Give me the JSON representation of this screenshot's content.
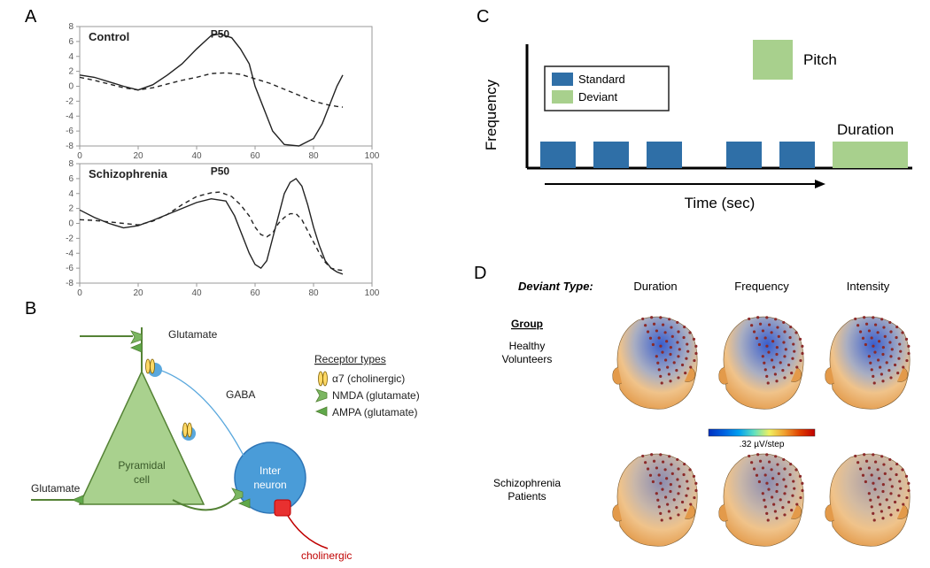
{
  "panels": {
    "A": "A",
    "B": "B",
    "C": "C",
    "D": "D"
  },
  "A": {
    "control": {
      "title": "Control",
      "p50": "P50",
      "xlim": [
        0,
        100
      ],
      "ylim": [
        -8,
        8
      ],
      "xticks": [
        0,
        20,
        40,
        60,
        80,
        100
      ],
      "yticks": [
        -8,
        -6,
        -4,
        -2,
        0,
        2,
        4,
        6,
        8
      ],
      "line_solid": [
        [
          0,
          1.5
        ],
        [
          5,
          1.2
        ],
        [
          10,
          0.6
        ],
        [
          15,
          0
        ],
        [
          20,
          -0.5
        ],
        [
          25,
          0.2
        ],
        [
          30,
          1.5
        ],
        [
          35,
          3
        ],
        [
          40,
          5
        ],
        [
          45,
          6.8
        ],
        [
          48,
          7
        ],
        [
          52,
          6.5
        ],
        [
          55,
          5
        ],
        [
          58,
          3
        ],
        [
          60,
          0
        ],
        [
          63,
          -3
        ],
        [
          66,
          -6
        ],
        [
          70,
          -7.8
        ],
        [
          75,
          -8
        ],
        [
          80,
          -7
        ],
        [
          83,
          -5
        ],
        [
          86,
          -2
        ],
        [
          88,
          0
        ],
        [
          90,
          1.5
        ]
      ],
      "line_dash": [
        [
          0,
          1.2
        ],
        [
          5,
          0.8
        ],
        [
          10,
          0.3
        ],
        [
          15,
          -0.2
        ],
        [
          20,
          -0.5
        ],
        [
          25,
          -0.2
        ],
        [
          30,
          0.3
        ],
        [
          35,
          0.8
        ],
        [
          40,
          1.2
        ],
        [
          45,
          1.7
        ],
        [
          50,
          1.8
        ],
        [
          55,
          1.6
        ],
        [
          60,
          1.0
        ],
        [
          65,
          0.4
        ],
        [
          70,
          -0.4
        ],
        [
          75,
          -1.2
        ],
        [
          80,
          -2
        ],
        [
          85,
          -2.5
        ],
        [
          88,
          -2.7
        ],
        [
          90,
          -2.8
        ]
      ],
      "solid_color": "#222222",
      "dash_color": "#222222",
      "line_width": 1.4
    },
    "schizo": {
      "title": "Schizophrenia",
      "p50": "P50",
      "xlim": [
        0,
        100
      ],
      "ylim": [
        -8,
        8
      ],
      "xticks": [
        0,
        20,
        40,
        60,
        80,
        100
      ],
      "yticks": [
        -8,
        -6,
        -4,
        -2,
        0,
        2,
        4,
        6,
        8
      ],
      "line_solid": [
        [
          0,
          1.8
        ],
        [
          5,
          0.8
        ],
        [
          10,
          0
        ],
        [
          15,
          -0.6
        ],
        [
          20,
          -0.3
        ],
        [
          25,
          0.4
        ],
        [
          30,
          1.2
        ],
        [
          35,
          2
        ],
        [
          40,
          2.8
        ],
        [
          45,
          3.3
        ],
        [
          50,
          3
        ],
        [
          53,
          1
        ],
        [
          56,
          -2
        ],
        [
          58,
          -4
        ],
        [
          60,
          -5.5
        ],
        [
          62,
          -6
        ],
        [
          64,
          -5
        ],
        [
          66,
          -2
        ],
        [
          68,
          1
        ],
        [
          70,
          4
        ],
        [
          72,
          5.5
        ],
        [
          74,
          6
        ],
        [
          76,
          5
        ],
        [
          78,
          2.5
        ],
        [
          80,
          -0.5
        ],
        [
          82,
          -3
        ],
        [
          84,
          -5
        ],
        [
          86,
          -6
        ],
        [
          88,
          -6.5
        ],
        [
          90,
          -6.8
        ]
      ],
      "line_dash": [
        [
          0,
          0.5
        ],
        [
          5,
          0.4
        ],
        [
          10,
          0.2
        ],
        [
          15,
          0
        ],
        [
          20,
          -0.2
        ],
        [
          25,
          0.3
        ],
        [
          30,
          1.2
        ],
        [
          35,
          2.5
        ],
        [
          40,
          3.6
        ],
        [
          45,
          4.1
        ],
        [
          48,
          4.2
        ],
        [
          52,
          3.6
        ],
        [
          55,
          2.5
        ],
        [
          58,
          1
        ],
        [
          60,
          -0.5
        ],
        [
          62,
          -1.5
        ],
        [
          64,
          -1.8
        ],
        [
          66,
          -1.3
        ],
        [
          68,
          0
        ],
        [
          70,
          0.8
        ],
        [
          72,
          1.3
        ],
        [
          74,
          1.3
        ],
        [
          76,
          0.5
        ],
        [
          78,
          -1
        ],
        [
          80,
          -2.5
        ],
        [
          82,
          -4
        ],
        [
          84,
          -5.2
        ],
        [
          86,
          -6
        ],
        [
          88,
          -6.2
        ],
        [
          90,
          -6.3
        ]
      ],
      "solid_color": "#222222",
      "dash_color": "#222222",
      "line_width": 1.4
    },
    "axis_color": "#999999",
    "tick_font": 10,
    "title_font": 13
  },
  "B": {
    "labels": {
      "glutamate_top": "Glutamate",
      "glutamate_left": "Glutamate",
      "gaba": "GABA",
      "pyramidal": "Pyramidal\ncell",
      "interneuron": "Inter\nneuron",
      "cholinergic": "cholinergic",
      "legend_title": "Receptor types",
      "a7": "α7 (cholinergic)",
      "nmda": "NMDA (glutamate)",
      "ampa": "AMPA (glutamate)"
    },
    "colors": {
      "pyramidal_fill": "#a9d18e",
      "pyramidal_stroke": "#548235",
      "interneuron_fill": "#4a9cd8",
      "interneuron_stroke": "#2e75b6",
      "gaba_stroke": "#5aa8dd",
      "glutamate_stroke": "#548235",
      "cholinergic_fill": "#e83030",
      "cholinergic_stroke": "#c00000",
      "a7_fill": "#ffd966",
      "a7_stroke": "#7f6000",
      "nmda_fill": "#7bb661",
      "ampa_fill": "#5fa84a",
      "text": "#222222",
      "inner_text": "#ffffff"
    },
    "font_label": 12
  },
  "C": {
    "legend": {
      "standard": "Standard",
      "deviant": "Deviant"
    },
    "labels": {
      "pitch": "Pitch",
      "duration": "Duration",
      "xlabel": "Time (sec)",
      "ylabel": "Frequency"
    },
    "colors": {
      "standard": "#2f6fa7",
      "deviant": "#a8d08d",
      "axis": "#000000",
      "text": "#000000",
      "legend_border": "#222222"
    },
    "bars": {
      "standard_x": [
        70,
        130,
        190,
        280,
        340
      ],
      "standard_w": 40,
      "standard_h": 30,
      "duration_x": 400,
      "duration_w": 85,
      "duration_h": 30,
      "pitch_x": 310,
      "pitch_w": 45,
      "pitch_h": 45,
      "pitch_y": 25
    },
    "font_label": 15,
    "font_legend": 13
  },
  "D": {
    "labels": {
      "deviant_type": "Deviant Type:",
      "cols": [
        "Duration",
        "Frequency",
        "Intensity"
      ],
      "group": "Group",
      "rows": [
        "Healthy\nVolunteers",
        "Schizophrenia\nPatients"
      ],
      "scale": ".32 µV/step"
    },
    "colors": {
      "text": "#000000",
      "head_warm": "#e39a4a",
      "head_warm_light": "#f0c38a",
      "head_cool": "#3a5fcd",
      "head_cool_light": "#7aa0e8",
      "electrode": "#8b2a2a",
      "colorbar": [
        "#0030c0",
        "#0060e0",
        "#00a0f0",
        "#60e0c0",
        "#f0f060",
        "#f0a030",
        "#e04000",
        "#c00000"
      ]
    },
    "head_intensity": {
      "healthy": [
        1.0,
        1.0,
        1.0
      ],
      "patients": [
        0.55,
        0.55,
        0.4
      ]
    },
    "font_header": 13,
    "font_group": 12
  }
}
